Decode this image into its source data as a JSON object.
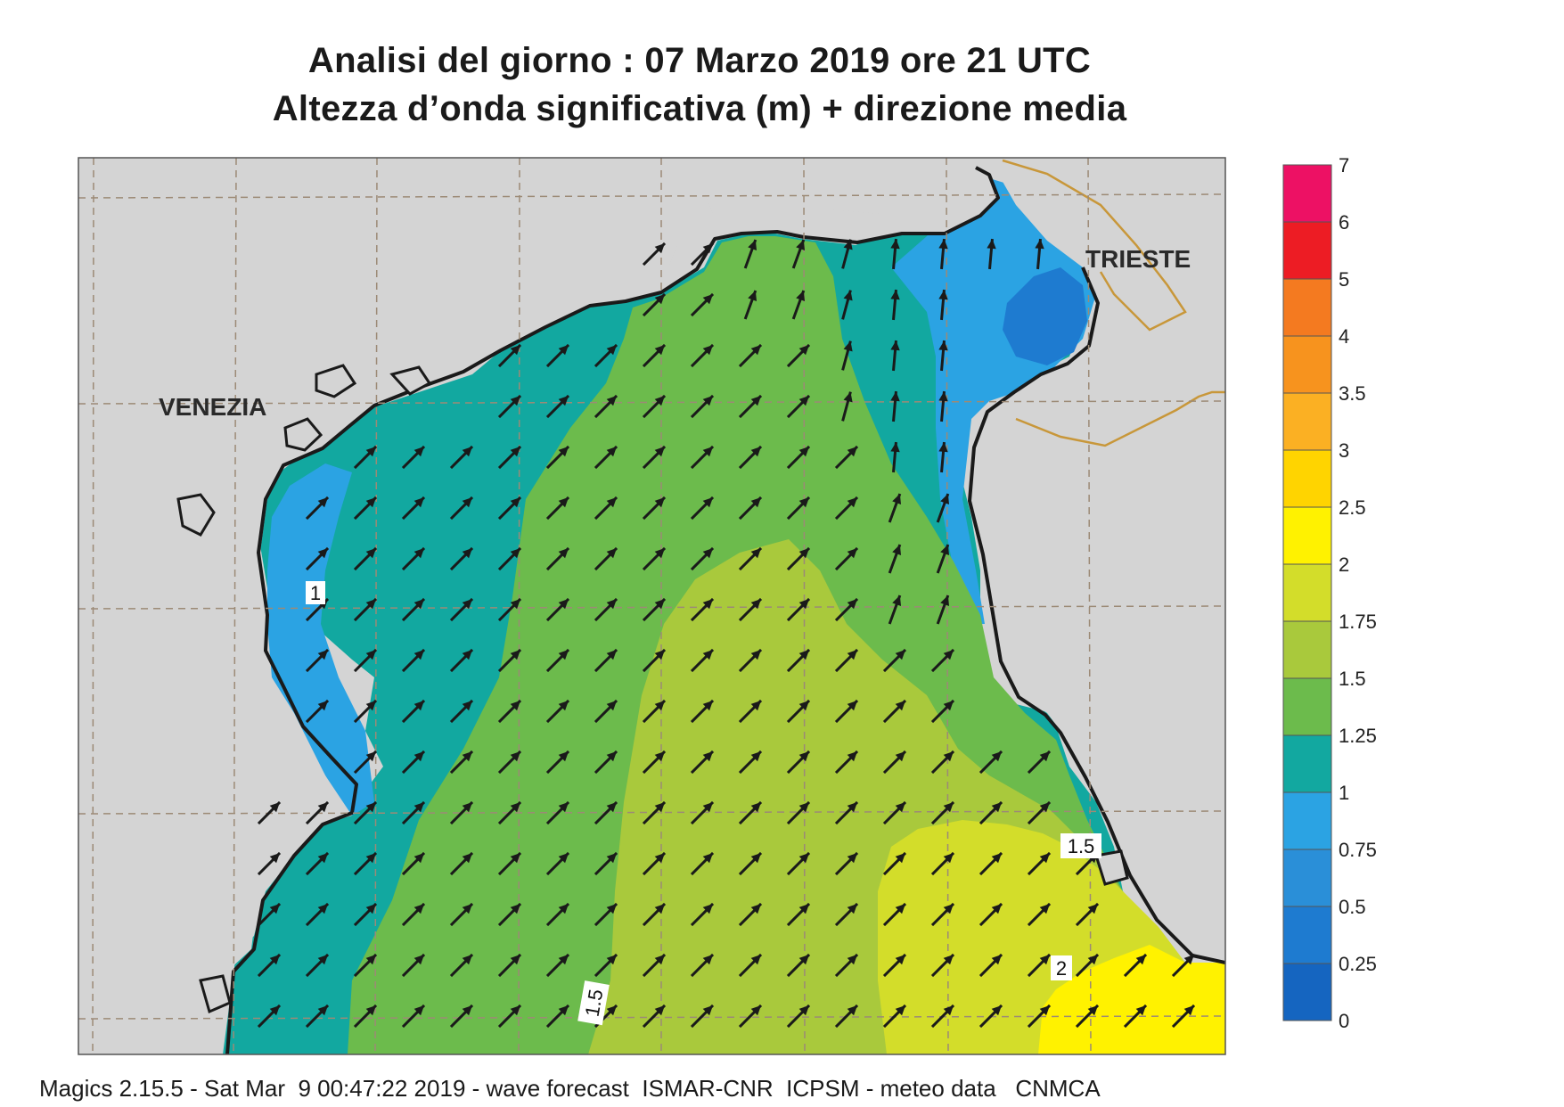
{
  "title_line1": "Analisi del giorno :  07   Marzo   2019   ore 21 UTC",
  "title_line2": "Altezza d’onda significativa (m) + direzione media",
  "footer": "Magics 2.15.5 - Sat Mar  9 00:47:22 2019 - wave forecast  ISMAR-CNR  ICPSM - meteo data   CNMCA",
  "place_labels": {
    "venezia": "VENEZIA",
    "trieste": "TRIESTE"
  },
  "contour_labels": {
    "c1": "1",
    "c15_right": "1.5",
    "c15_bottom": "1.5",
    "c2": "2"
  },
  "legend": {
    "ticks": [
      "0",
      "0.25",
      "0.5",
      "0.75",
      "1",
      "1.25",
      "1.5",
      "1.75",
      "2",
      "2.5",
      "3",
      "3.5",
      "4",
      "5",
      "6",
      "7"
    ],
    "colors": [
      "#1565c0",
      "#1e7bd0",
      "#2a8fd8",
      "#2ba3e3",
      "#12a8a0",
      "#6cbb4c",
      "#a9c93c",
      "#d3dd2a",
      "#fff200",
      "#ffd400",
      "#fbb023",
      "#f7931e",
      "#f47a20",
      "#ed1c24",
      "#ed1164"
    ]
  },
  "colors": {
    "land": "#d4d4d4",
    "coast": "#1a1a1a",
    "border": "#c8973a",
    "grid": "#9c8a76",
    "arrow": "#1a1a1a"
  }
}
